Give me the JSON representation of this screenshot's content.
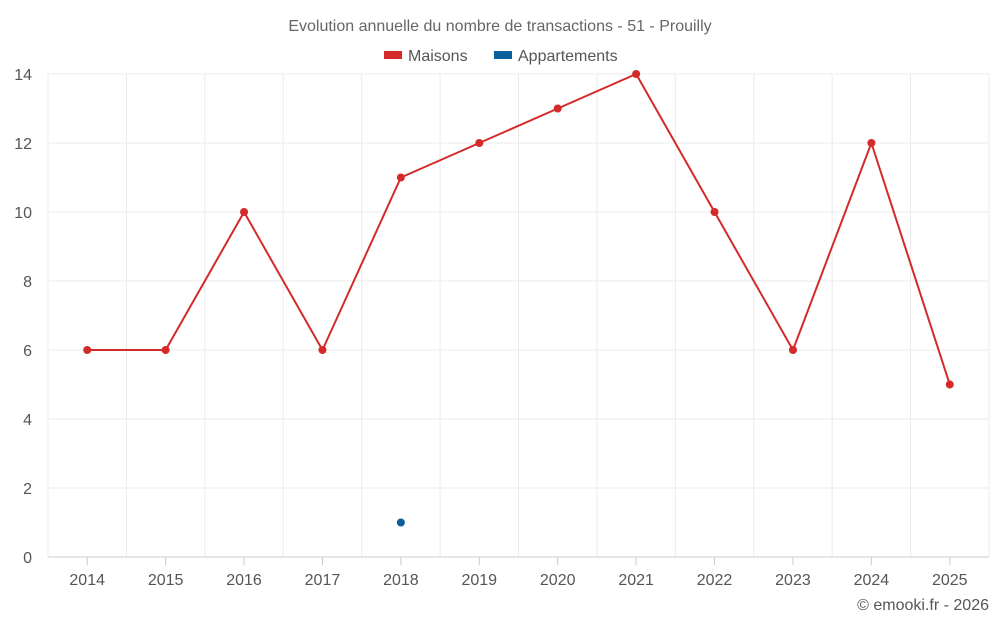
{
  "chart_data": {
    "type": "line",
    "title": "Evolution annuelle du nombre de transactions - 51 - Prouilly",
    "categories": [
      "2014",
      "2015",
      "2016",
      "2017",
      "2018",
      "2019",
      "2020",
      "2021",
      "2022",
      "2023",
      "2024",
      "2025"
    ],
    "series": [
      {
        "name": "Maisons",
        "color": "#d42a2a",
        "values": [
          6,
          6,
          10,
          6,
          11,
          12,
          13,
          14,
          10,
          6,
          12,
          5
        ]
      },
      {
        "name": "Appartements",
        "color": "#0a5f9e",
        "values": [
          null,
          null,
          null,
          null,
          1,
          null,
          null,
          null,
          null,
          null,
          null,
          null
        ]
      }
    ],
    "yticks": [
      0,
      2,
      4,
      6,
      8,
      10,
      12,
      14
    ],
    "ylim": [
      0,
      14
    ],
    "xlabel": "",
    "ylabel": "",
    "grid": true,
    "legend": "top-center"
  },
  "credit": "© emooki.fr - 2026"
}
